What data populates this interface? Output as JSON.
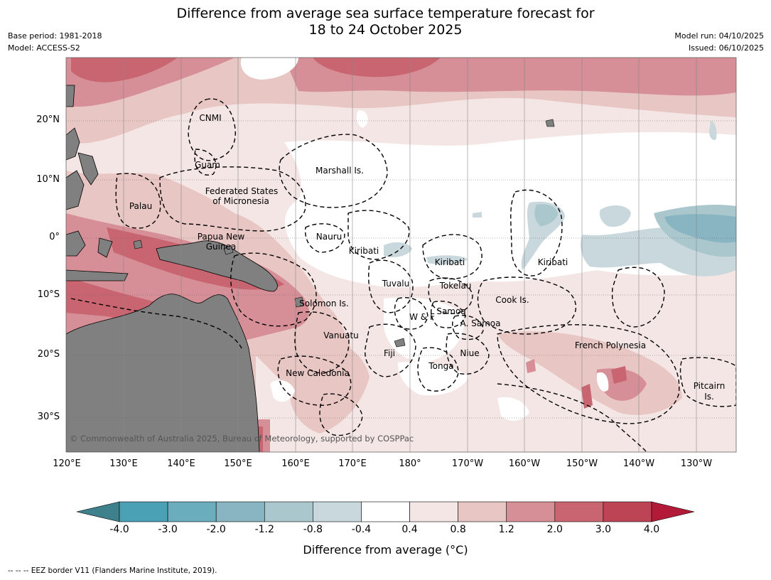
{
  "title_line1": "Difference from average sea surface temperature forecast for",
  "title_line2": "18 to 24 October 2025",
  "meta_left": {
    "base_period": "Base period: 1981-2018",
    "model": "Model: ACCESS-S2"
  },
  "meta_right": {
    "model_run": "Model run: 04/10/2025",
    "issued": "Issued: 06/10/2025"
  },
  "lat_labels": [
    "20°N",
    "10°N",
    "0°",
    "10°S",
    "20°S",
    "30°S"
  ],
  "lon_labels": [
    "120°E",
    "130°E",
    "140°E",
    "150°E",
    "160°E",
    "170°E",
    "180°",
    "170°W",
    "160°W",
    "150°W",
    "140°W",
    "130°W"
  ],
  "places": [
    {
      "id": "cnmi",
      "text": "CNMI"
    },
    {
      "id": "guam",
      "text": "Guam"
    },
    {
      "id": "marshall",
      "text": "Marshall Is."
    },
    {
      "id": "fsm1",
      "text": "Federated States"
    },
    {
      "id": "fsm2",
      "text": "of Micronesia"
    },
    {
      "id": "palau",
      "text": "Palau"
    },
    {
      "id": "nauru",
      "text": "Nauru"
    },
    {
      "id": "png1",
      "text": "Papua New"
    },
    {
      "id": "png2",
      "text": "Guinea"
    },
    {
      "id": "kiribati1",
      "text": "Kiribati"
    },
    {
      "id": "kiribati2",
      "text": "Kiribati"
    },
    {
      "id": "kiribati3",
      "text": "Kiribati"
    },
    {
      "id": "tuvalu",
      "text": "Tuvalu"
    },
    {
      "id": "tokelau",
      "text": "Tokelau"
    },
    {
      "id": "cook",
      "text": "Cook Is."
    },
    {
      "id": "solomon",
      "text": "Solomon Is."
    },
    {
      "id": "wf",
      "text": "W & F"
    },
    {
      "id": "samoa",
      "text": "Samoa"
    },
    {
      "id": "asamoa",
      "text": "A. Samoa"
    },
    {
      "id": "vanuatu",
      "text": "Vanuatu"
    },
    {
      "id": "fiji",
      "text": "Fiji"
    },
    {
      "id": "niue",
      "text": "Niue"
    },
    {
      "id": "frpoly",
      "text": "French Polynesia"
    },
    {
      "id": "tonga",
      "text": "Tonga"
    },
    {
      "id": "newcal",
      "text": "New Caledonia"
    },
    {
      "id": "pitcairn1",
      "text": "Pitcairn"
    },
    {
      "id": "pitcairn2",
      "text": "Is."
    }
  ],
  "copyright": "© Commonwealth of Australia 2025, Bureau of Meteorology, supported by COSPPac",
  "colorbar": {
    "ticks": [
      "-4.0",
      "-3.0",
      "-2.0",
      "-1.2",
      "-0.8",
      "-0.4",
      "0.4",
      "0.8",
      "1.2",
      "2.0",
      "3.0",
      "4.0"
    ],
    "colors": [
      "#3e808c",
      "#4aa0b5",
      "#6aaebd",
      "#89b5c2",
      "#a9c7cc",
      "#c9d8dc",
      "#ffffff",
      "#f4e6e5",
      "#e8c6c3",
      "#d68f96",
      "#c86570",
      "#bd4454",
      "#b31a38"
    ],
    "label": "Difference from average (°C)"
  },
  "footer": "-- -- -- EEZ border V11 (Flanders Marine Institute, 2019)."
}
